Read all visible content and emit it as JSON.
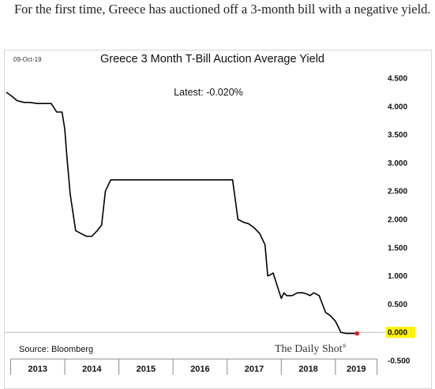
{
  "intro": {
    "text": "For the first time, Greece has auctioned off a 3-month bill with a negative yield."
  },
  "chart_data": {
    "type": "line",
    "title": "Greece 3 Month T-Bill Auction Average Yield",
    "date_label": "09-Oct-19",
    "latest_label": "Latest:  -0.020%",
    "source": "Source: Bloomberg",
    "brand": "The Daily Shot",
    "brand_mark": "®",
    "xlabel": "",
    "ylabel": "",
    "ylim": [
      -0.5,
      4.5
    ],
    "yticks": [
      "4.500",
      "4.000",
      "3.500",
      "3.000",
      "2.500",
      "2.000",
      "1.500",
      "1.000",
      "0.500",
      "0.000",
      "-0.500"
    ],
    "highlight_tick": "0.000",
    "xlim": [
      2012.92,
      2019.79
    ],
    "x_axis_labels": [
      {
        "label": "2013",
        "start": 2013.0,
        "end": 2014.0
      },
      {
        "label": "2014",
        "start": 2014.0,
        "end": 2015.0
      },
      {
        "label": "2015",
        "start": 2015.0,
        "end": 2016.0
      },
      {
        "label": "2016",
        "start": 2016.0,
        "end": 2017.0
      },
      {
        "label": "2017",
        "start": 2017.0,
        "end": 2018.0
      },
      {
        "label": "2018",
        "start": 2018.0,
        "end": 2019.0
      },
      {
        "label": "2019",
        "start": 2019.0,
        "end": 2019.77
      }
    ],
    "series": [
      {
        "x": [
          2012.92,
          2013.02,
          2013.12,
          2013.25,
          2013.35,
          2013.5,
          2013.65,
          2013.75,
          2013.85,
          2013.95,
          2014.0,
          2014.04,
          2014.1,
          2014.2,
          2014.3,
          2014.4,
          2014.5,
          2014.6,
          2014.68,
          2014.75,
          2014.85,
          2014.95,
          2015.2,
          2015.5,
          2015.8,
          2016.1,
          2016.4,
          2016.7,
          2016.97,
          2017.1,
          2017.2,
          2017.3,
          2017.4,
          2017.5,
          2017.55,
          2017.6,
          2017.7,
          2017.75,
          2017.8,
          2017.85,
          2017.9,
          2018.0,
          2018.05,
          2018.1,
          2018.2,
          2018.3,
          2018.4,
          2018.47,
          2018.53,
          2018.6,
          2018.7,
          2018.82,
          2018.9,
          2019.0,
          2019.05,
          2019.1,
          2019.2,
          2019.3,
          2019.4
        ],
        "y": [
          4.25,
          4.18,
          4.1,
          4.07,
          4.07,
          4.05,
          4.05,
          4.05,
          3.9,
          3.9,
          3.6,
          3.1,
          2.45,
          1.8,
          1.75,
          1.7,
          1.7,
          1.8,
          1.9,
          2.5,
          2.7,
          2.7,
          2.7,
          2.7,
          2.7,
          2.7,
          2.7,
          2.7,
          2.7,
          2.7,
          2.0,
          1.95,
          1.92,
          1.85,
          1.8,
          1.75,
          1.55,
          1.0,
          1.02,
          1.05,
          0.9,
          0.6,
          0.7,
          0.65,
          0.65,
          0.7,
          0.7,
          0.68,
          0.65,
          0.7,
          0.65,
          0.35,
          0.3,
          0.2,
          0.1,
          0.0,
          -0.02,
          -0.02,
          -0.02
        ]
      }
    ]
  },
  "colors": {
    "line": "#000000",
    "latest_dot": "#e8191f",
    "highlight_fill": "#fff200",
    "zero_line": "#bdbdbd",
    "axis": "#8c8c8c"
  }
}
